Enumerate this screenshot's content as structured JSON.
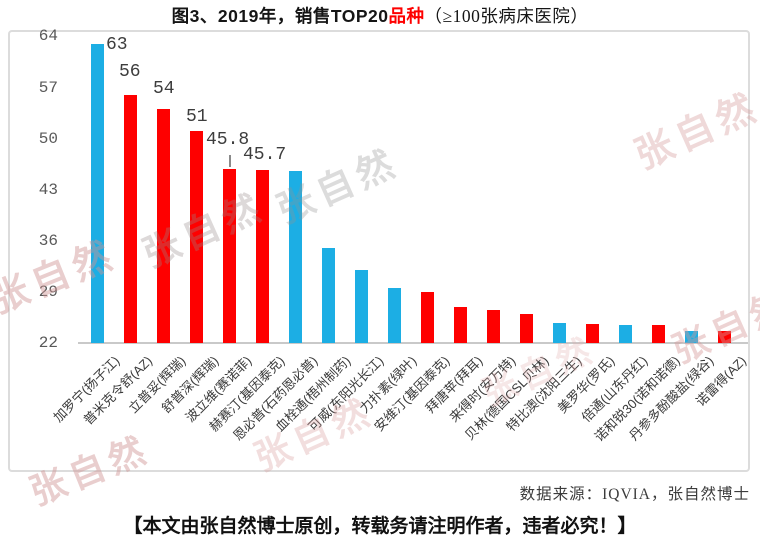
{
  "title": {
    "prefix": "图3、2019年，销售TOP20",
    "highlight": "品种",
    "suffix": "（≥100张病床医院）"
  },
  "watermark": {
    "text": "张自然"
  },
  "source_note": "数据来源：IQVIA，张自然博士",
  "footer": "【本文由张自然博士原创，转载务请注明作者，违者必究！】",
  "colors": {
    "bar_cyan": "#1caee4",
    "bar_red": "#fe0000",
    "title_highlight": "#fe0000",
    "axis_text": "#595959",
    "border": "#dcdcdc"
  },
  "chart_data": {
    "type": "bar",
    "title": "图3、2019年，销售TOP20品种（≥100张病床医院）",
    "xlabel": "",
    "ylabel": "",
    "ylim": [
      22,
      64
    ],
    "yticks": [
      22,
      29,
      36,
      43,
      50,
      57,
      64
    ],
    "grid": false,
    "legend": false,
    "categories": [
      "加罗宁(扬子江)",
      "普米克令舒(AZ)",
      "立普妥(辉瑞)",
      "舒普深(辉瑞)",
      "波立维(赛诺菲)",
      "赫赛汀(基因泰克)",
      "恩必普(石药恩必普)",
      "血栓通(梧州制药)",
      "可威(东阳光长江)",
      "力扑素(绿叶)",
      "安维汀(基因泰克)",
      "拜唐苹(拜耳)",
      "来得时(安万特)",
      "贝林(德国CSL贝林)",
      "特比澳(沈阳三生)",
      "美罗华(罗氏)",
      "倍通(山东丹红)",
      "诺和锐30(诺和诺德)",
      "丹参多酚酸盐(绿谷)",
      "诺雷得(AZ)"
    ],
    "values": [
      63,
      56,
      54,
      51,
      45.8,
      45.7,
      45.5,
      35,
      32,
      29.5,
      29,
      27,
      26.5,
      26,
      24.8,
      24.6,
      24.5,
      24.4,
      23.7,
      23.6
    ],
    "bar_colors": [
      "cyan",
      "red",
      "red",
      "red",
      "red",
      "red",
      "cyan",
      "cyan",
      "cyan",
      "cyan",
      "red",
      "red",
      "red",
      "red",
      "cyan",
      "red",
      "cyan",
      "red",
      "cyan",
      "red"
    ],
    "data_labels": [
      "63",
      "56",
      "54",
      "51",
      "45.8",
      "45.7",
      "",
      "",
      "",
      "",
      "",
      "",
      "",
      "",
      "",
      "",
      "",
      "",
      "",
      ""
    ]
  }
}
